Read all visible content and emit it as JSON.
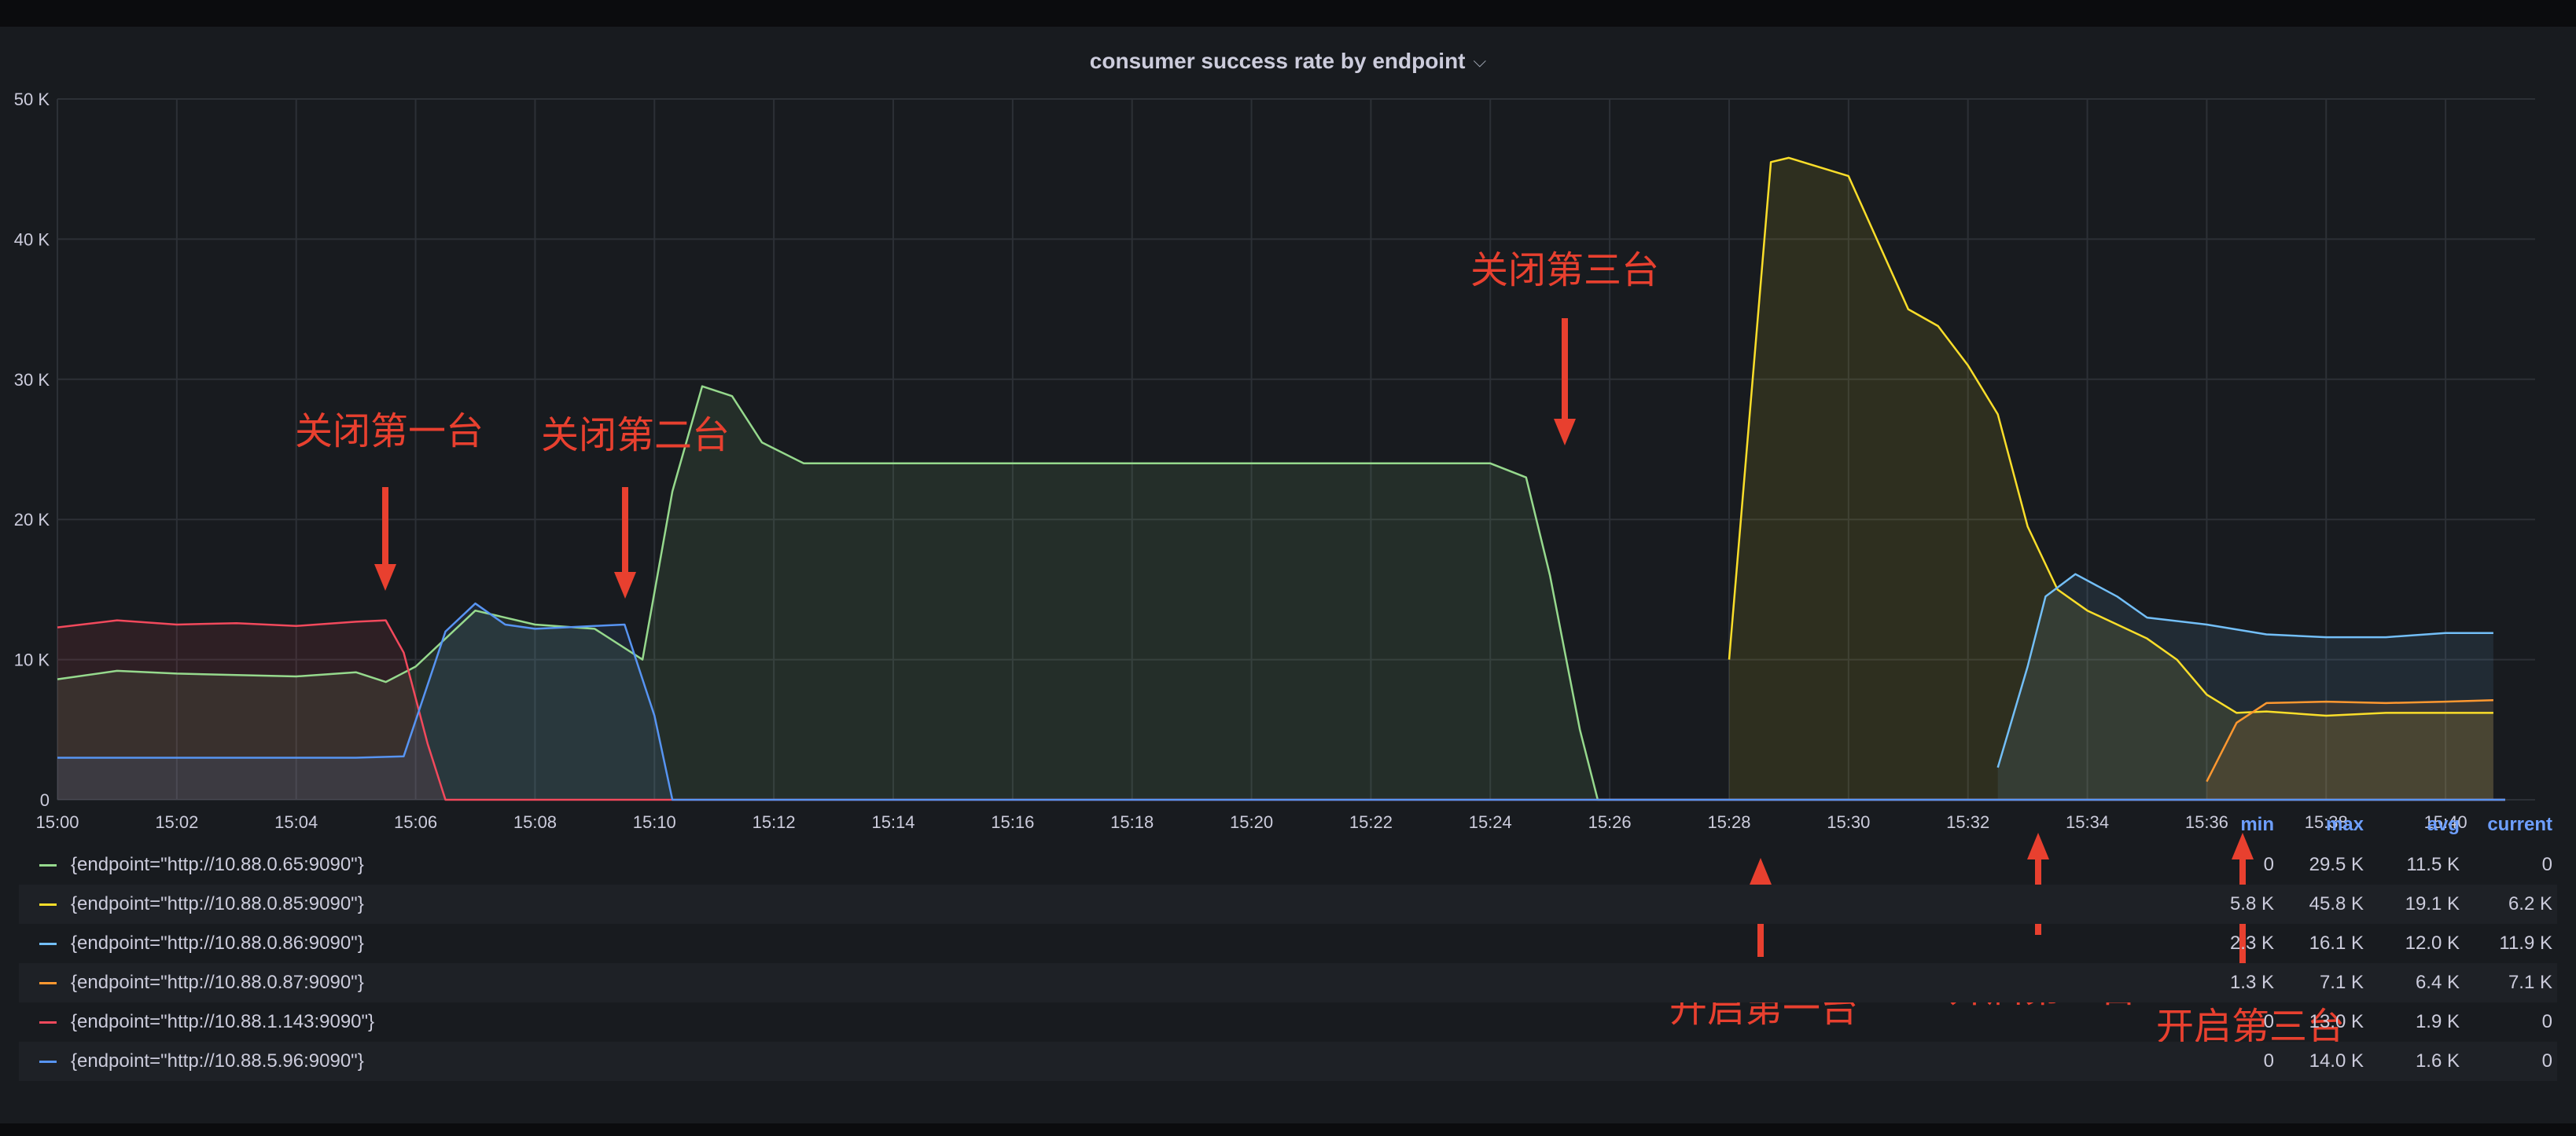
{
  "panel": {
    "title": "consumer success rate by endpoint",
    "caret": "⌵"
  },
  "chart_data": {
    "type": "area",
    "title": "consumer success rate by endpoint",
    "xlabel": "",
    "ylabel": "",
    "x_unit": "time",
    "ylim": [
      0,
      50000
    ],
    "xlim": [
      "15:00",
      "15:41"
    ],
    "grid": true,
    "legend_position": "bottom",
    "y_ticks": [
      "0",
      "10 K",
      "20 K",
      "30 K",
      "40 K",
      "50 K"
    ],
    "x_ticks": [
      "15:00",
      "15:02",
      "15:04",
      "15:06",
      "15:08",
      "15:10",
      "15:12",
      "15:14",
      "15:16",
      "15:18",
      "15:20",
      "15:22",
      "15:24",
      "15:26",
      "15:28",
      "15:30",
      "15:32",
      "15:34",
      "15:36",
      "15:38",
      "15:40"
    ],
    "series": [
      {
        "name": "{endpoint=\"http://10.88.0.65:9090\"}",
        "color": "#96d98d",
        "points": [
          [
            "15:00",
            8600
          ],
          [
            "15:01",
            9200
          ],
          [
            "15:02",
            9000
          ],
          [
            "15:03",
            8900
          ],
          [
            "15:04",
            8800
          ],
          [
            "15:05",
            9100
          ],
          [
            "15:05.5",
            8400
          ],
          [
            "15:06",
            9500
          ],
          [
            "15:07",
            13500
          ],
          [
            "15:08",
            12500
          ],
          [
            "15:09",
            12200
          ],
          [
            "15:09.8",
            10000
          ],
          [
            "15:10.3",
            22000
          ],
          [
            "15:10.8",
            29500
          ],
          [
            "15:11.3",
            28800
          ],
          [
            "15:11.8",
            25500
          ],
          [
            "15:12.5",
            24000
          ],
          [
            "15:14",
            24000
          ],
          [
            "15:16",
            24000
          ],
          [
            "15:18",
            24000
          ],
          [
            "15:20",
            24000
          ],
          [
            "15:22",
            24000
          ],
          [
            "15:24",
            24000
          ],
          [
            "15:24.6",
            23000
          ],
          [
            "15:25",
            16000
          ],
          [
            "15:25.5",
            5000
          ],
          [
            "15:25.8",
            0
          ],
          [
            "15:41",
            0
          ]
        ],
        "stats": {
          "min": "0",
          "max": "29.5 K",
          "avg": "11.5 K",
          "current": "0"
        }
      },
      {
        "name": "{endpoint=\"http://10.88.0.85:9090\"}",
        "color": "#fade2a",
        "points": [
          [
            "15:28",
            10000
          ],
          [
            "15:28.7",
            45500
          ],
          [
            "15:29",
            45800
          ],
          [
            "15:30",
            44500
          ],
          [
            "15:31",
            35000
          ],
          [
            "15:31.5",
            33800
          ],
          [
            "15:32",
            31000
          ],
          [
            "15:32.5",
            27500
          ],
          [
            "15:33",
            19500
          ],
          [
            "15:33.5",
            15000
          ],
          [
            "15:34",
            13500
          ],
          [
            "15:35",
            11500
          ],
          [
            "15:35.5",
            10000
          ],
          [
            "15:36",
            7500
          ],
          [
            "15:36.5",
            6200
          ],
          [
            "15:37",
            6300
          ],
          [
            "15:38",
            6000
          ],
          [
            "15:39",
            6200
          ],
          [
            "15:40",
            6200
          ],
          [
            "15:40.8",
            6200
          ]
        ],
        "stats": {
          "min": "5.8 K",
          "max": "45.8 K",
          "avg": "19.1 K",
          "current": "6.2 K"
        }
      },
      {
        "name": "{endpoint=\"http://10.88.0.86:9090\"}",
        "color": "#73bff8",
        "points": [
          [
            "15:32.5",
            2300
          ],
          [
            "15:33",
            9500
          ],
          [
            "15:33.3",
            14500
          ],
          [
            "15:33.8",
            16100
          ],
          [
            "15:34.5",
            14500
          ],
          [
            "15:35",
            13000
          ],
          [
            "15:36",
            12500
          ],
          [
            "15:37",
            11800
          ],
          [
            "15:38",
            11600
          ],
          [
            "15:39",
            11600
          ],
          [
            "15:40",
            11900
          ],
          [
            "15:40.8",
            11900
          ]
        ],
        "stats": {
          "min": "2.3 K",
          "max": "16.1 K",
          "avg": "12.0 K",
          "current": "11.9 K"
        }
      },
      {
        "name": "{endpoint=\"http://10.88.0.87:9090\"}",
        "color": "#ff9830",
        "points": [
          [
            "15:36",
            1300
          ],
          [
            "15:36.5",
            5500
          ],
          [
            "15:37",
            6900
          ],
          [
            "15:38",
            7000
          ],
          [
            "15:39",
            6900
          ],
          [
            "15:40",
            7000
          ],
          [
            "15:40.8",
            7100
          ]
        ],
        "stats": {
          "min": "1.3 K",
          "max": "7.1 K",
          "avg": "6.4 K",
          "current": "7.1 K"
        }
      },
      {
        "name": "{endpoint=\"http://10.88.1.143:9090\"}",
        "color": "#f2495c",
        "points": [
          [
            "15:00",
            12300
          ],
          [
            "15:01",
            12800
          ],
          [
            "15:02",
            12500
          ],
          [
            "15:03",
            12600
          ],
          [
            "15:04",
            12400
          ],
          [
            "15:05",
            12700
          ],
          [
            "15:05.5",
            12800
          ],
          [
            "15:05.8",
            10500
          ],
          [
            "15:06.2",
            4000
          ],
          [
            "15:06.5",
            0
          ],
          [
            "15:41",
            0
          ]
        ],
        "stats": {
          "min": "0",
          "max": "13.0 K",
          "avg": "1.9 K",
          "current": "0"
        }
      },
      {
        "name": "{endpoint=\"http://10.88.5.96:9090\"}",
        "color": "#5794f2",
        "points": [
          [
            "15:00",
            3000
          ],
          [
            "15:01",
            3000
          ],
          [
            "15:02",
            3000
          ],
          [
            "15:03",
            3000
          ],
          [
            "15:04",
            3000
          ],
          [
            "15:05",
            3000
          ],
          [
            "15:05.8",
            3100
          ],
          [
            "15:06.5",
            12000
          ],
          [
            "15:07",
            14000
          ],
          [
            "15:07.5",
            12500
          ],
          [
            "15:08",
            12200
          ],
          [
            "15:08.5",
            12300
          ],
          [
            "15:09",
            12400
          ],
          [
            "15:09.5",
            12500
          ],
          [
            "15:10",
            6000
          ],
          [
            "15:10.3",
            0
          ],
          [
            "15:41",
            0
          ]
        ],
        "stats": {
          "min": "0",
          "max": "14.0 K",
          "avg": "1.6 K",
          "current": "0"
        }
      }
    ],
    "annotations": [
      {
        "text": "关闭第一台",
        "time": "15:05.4",
        "pointing": "down"
      },
      {
        "text": "关闭第二台",
        "time": "15:09.3",
        "pointing": "down"
      },
      {
        "text": "关闭第三台",
        "time": "15:24.5",
        "pointing": "down"
      },
      {
        "text": "开启第一台",
        "time": "15:28",
        "pointing": "up"
      },
      {
        "text": "开启第二台",
        "time": "15:32.5",
        "pointing": "up"
      },
      {
        "text": "开启第三台",
        "time": "15:36",
        "pointing": "up"
      }
    ]
  },
  "legend": {
    "headers": {
      "min": "min",
      "max": "max",
      "avg": "avg",
      "current": "current"
    }
  }
}
